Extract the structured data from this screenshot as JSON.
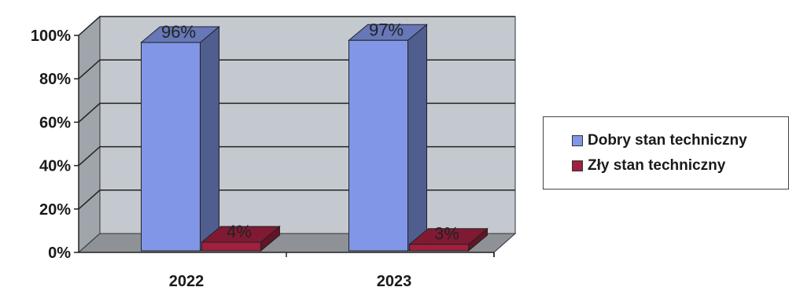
{
  "chart_data": {
    "type": "bar",
    "categories": [
      "2022",
      "2023"
    ],
    "series": [
      {
        "name": "Dobry stan techniczny",
        "values": [
          96,
          97
        ],
        "labels": [
          "96%",
          "97%"
        ],
        "color": "#8196e6"
      },
      {
        "name": "Zły stan techniczny",
        "values": [
          4,
          3
        ],
        "labels": [
          "4%",
          "3%"
        ],
        "color": "#a02040"
      }
    ],
    "y_ticks": [
      "0%",
      "20%",
      "40%",
      "60%",
      "80%",
      "100%"
    ],
    "ylim": [
      0,
      100
    ],
    "grid": true,
    "legend_position": "right",
    "style": "3d-column"
  },
  "legend": {
    "items": [
      {
        "label": "Dobry stan techniczny",
        "color": "#8196e6"
      },
      {
        "label": "Zły stan techniczny",
        "color": "#a02040"
      }
    ]
  }
}
